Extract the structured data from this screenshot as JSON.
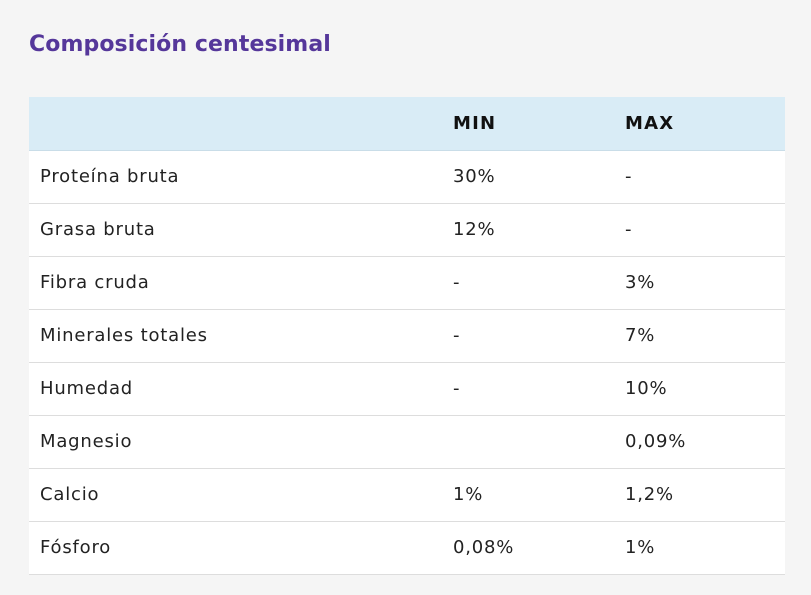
{
  "title": "Composición centesimal",
  "table": {
    "headers": [
      "",
      "MIN",
      "MAX"
    ],
    "rows": [
      {
        "name": "Proteína bruta",
        "min": "30%",
        "max": "-"
      },
      {
        "name": "Grasa bruta",
        "min": "12%",
        "max": "-"
      },
      {
        "name": "Fibra cruda",
        "min": "-",
        "max": "3%"
      },
      {
        "name": "Minerales totales",
        "min": "-",
        "max": "7%"
      },
      {
        "name": "Humedad",
        "min": "-",
        "max": "10%"
      },
      {
        "name": "Magnesio",
        "min": "",
        "max": "0,09%"
      },
      {
        "name": "Calcio",
        "min": "1%",
        "max": "1,2%"
      },
      {
        "name": "Fósforo",
        "min": "0,08%",
        "max": "1%"
      }
    ]
  },
  "colors": {
    "title": "#55379a",
    "header_bg": "#d9ecf6",
    "page_bg": "#f5f5f5",
    "row_bg": "#ffffff"
  }
}
